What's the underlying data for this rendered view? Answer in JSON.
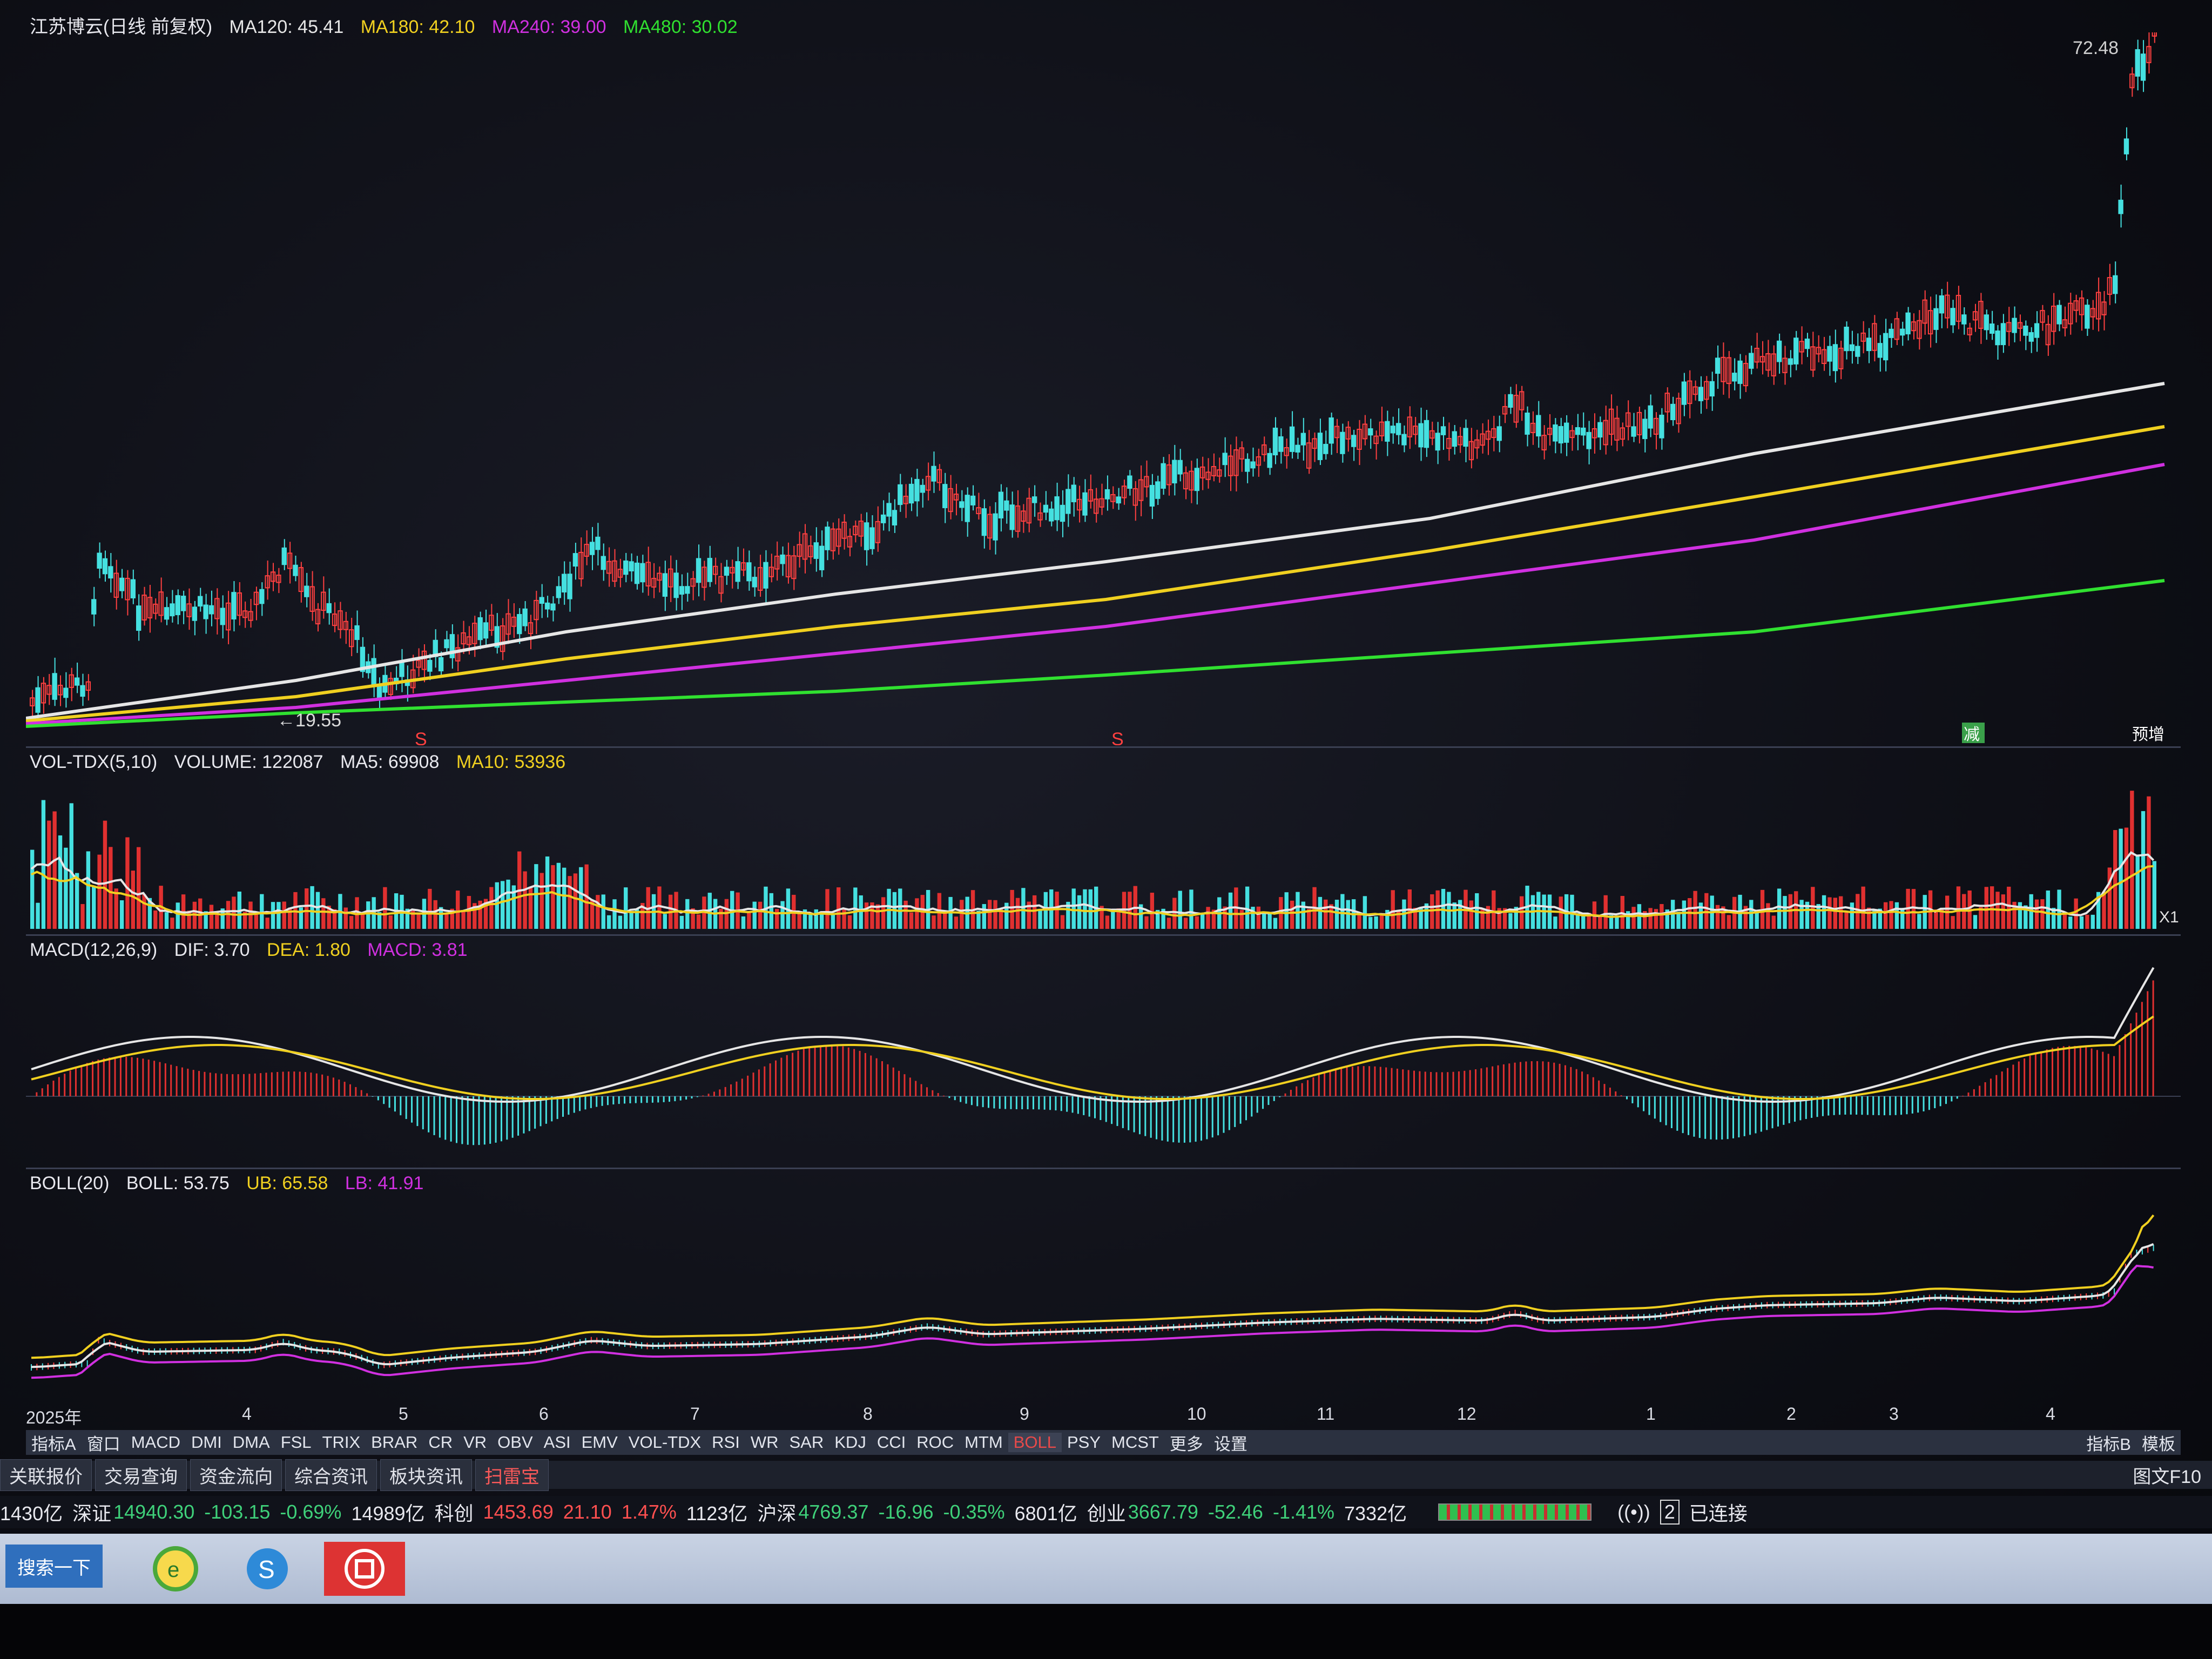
{
  "main_chart": {
    "title": "江苏博云(日线 前复权)",
    "ma120": "MA120: 45.41",
    "ma180": "MA180: 42.10",
    "ma240": "MA240: 39.00",
    "ma480": "MA480: 30.02",
    "high_label": "72.48",
    "low_label": "←19.55",
    "marker_s": "S",
    "tag_left": "减",
    "tag_right": "预增"
  },
  "volume_panel": {
    "label": "VOL-TDX(5,10)",
    "volume": "VOLUME: 122087",
    "ma5": "MA5: 69908",
    "ma10": "MA10: 53936",
    "scale_label": "X1"
  },
  "macd_panel": {
    "label": "MACD(12,26,9)",
    "dif": "DIF: 3.70",
    "dea": "DEA: 1.80",
    "macd": "MACD: 3.81"
  },
  "boll_panel": {
    "label": "BOLL(20)",
    "boll": "BOLL: 53.75",
    "ub": "UB: 65.58",
    "lb": "LB: 41.91"
  },
  "time_axis": [
    "2025年",
    "4",
    "5",
    "6",
    "7",
    "8",
    "9",
    "10",
    "11",
    "12",
    "1",
    "2",
    "3",
    "4"
  ],
  "indicator_tabs": [
    "指标A",
    "窗口",
    "MACD",
    "DMI",
    "DMA",
    "FSL",
    "TRIX",
    "BRAR",
    "CR",
    "VR",
    "OBV",
    "ASI",
    "EMV",
    "VOL-TDX",
    "RSI",
    "WR",
    "SAR",
    "KDJ",
    "CCI",
    "ROC",
    "MTM",
    "BOLL",
    "PSY",
    "MCST",
    "更多",
    "设置"
  ],
  "indicator_tabs_right": [
    "指标B",
    "模板"
  ],
  "info_tabs": [
    "关联报价",
    "交易查询",
    "资金流向",
    "综合资讯",
    "板块资讯",
    "扫雷宝"
  ],
  "info_tabs_right": "图文F10",
  "ticker": {
    "prefix": "1430亿",
    "sz_label": "深证",
    "sz_value": "14940.30",
    "sz_change": "-103.15",
    "sz_pct": "-0.69%",
    "sz_amount": "14989亿",
    "kc_label": "科创",
    "kc_value": "1453.69",
    "kc_change": "21.10",
    "kc_pct": "1.47%",
    "kc_amount": "1123亿",
    "hs_label": "沪深",
    "hs_value": "4769.37",
    "hs_change": "-16.96",
    "hs_pct": "-0.35%",
    "hs_amount": "6801亿",
    "cy_label": "创业",
    "cy_value": "3667.79",
    "cy_change": "-52.46",
    "cy_pct": "-1.41%",
    "cy_amount": "7332亿",
    "status": "已连接",
    "status_count": "2"
  },
  "taskbar": {
    "search_label": "搜索一下"
  },
  "colors": {
    "up": "#ff4040",
    "down": "#45e0e0",
    "ma120": "#e6e6e6",
    "ma180": "#f0d020",
    "ma240": "#d030e0",
    "ma480": "#30e030"
  }
}
